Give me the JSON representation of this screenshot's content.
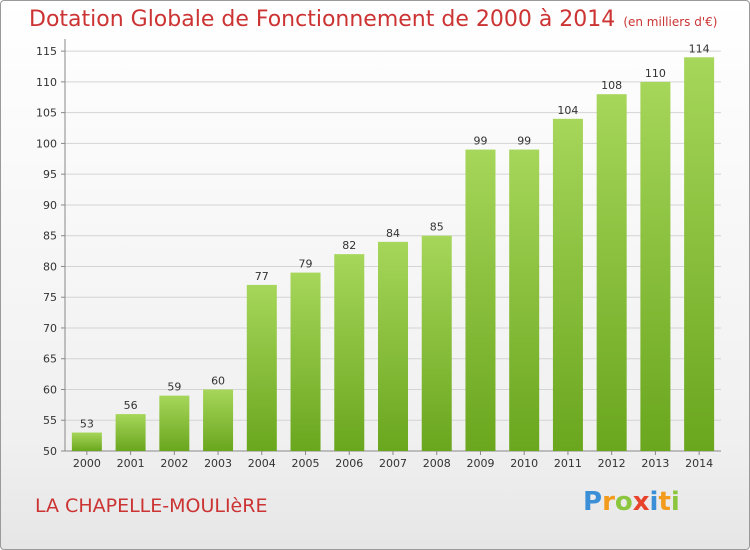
{
  "chart_data": {
    "type": "bar",
    "title": "Dotation Globale de Fonctionnement de 2000 à 2014",
    "unit_note": "(en milliers d'€)",
    "categories": [
      "2000",
      "2001",
      "2002",
      "2003",
      "2004",
      "2005",
      "2006",
      "2007",
      "2008",
      "2009",
      "2010",
      "2011",
      "2012",
      "2013",
      "2014"
    ],
    "values": [
      53,
      56,
      59,
      60,
      77,
      79,
      82,
      84,
      85,
      99,
      99,
      104,
      108,
      110,
      114
    ],
    "yticks": [
      50,
      55,
      60,
      65,
      70,
      75,
      80,
      85,
      90,
      95,
      100,
      105,
      110,
      115
    ],
    "ylim": [
      50,
      116
    ],
    "xlabel": "",
    "ylabel": "",
    "grid": true,
    "bar_color_top": "#a6d65a",
    "bar_color_bottom": "#6aa61e"
  },
  "footer": {
    "commune": "LA CHAPELLE-MOULIèRE",
    "logo_letters": [
      "P",
      "r",
      "o",
      "x",
      "i",
      "t",
      "i"
    ]
  }
}
